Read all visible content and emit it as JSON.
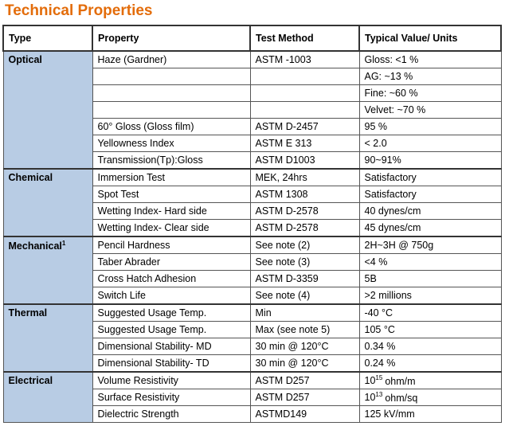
{
  "title": "Technical Properties",
  "table": {
    "header": [
      "Type",
      "Property",
      "Test Method",
      "Typical Value/ Units"
    ],
    "groups": [
      {
        "type": "Optical",
        "rows": [
          [
            "Haze (Gardner)",
            "ASTM -1003",
            "Gloss: <1 %"
          ],
          [
            null,
            null,
            "AG: ~13 %"
          ],
          [
            null,
            null,
            "Fine: ~60 %"
          ],
          [
            null,
            null,
            "Velvet: ~70 %"
          ],
          [
            "60° Gloss (Gloss film)",
            "ASTM D-2457",
            "95 %"
          ],
          [
            "Yellowness Index",
            "ASTM E 313",
            "< 2.0"
          ],
          [
            "Transmission(Tp):Gloss",
            "ASTM D1003",
            "90~91%"
          ]
        ]
      },
      {
        "type": "Chemical",
        "rows": [
          [
            "Immersion Test",
            "MEK, 24hrs",
            "Satisfactory"
          ],
          [
            "Spot Test",
            "ASTM 1308",
            "Satisfactory"
          ],
          [
            "Wetting Index- Hard side",
            "ASTM D-2578",
            "40 dynes/cm"
          ],
          [
            "Wetting Index- Clear side",
            "ASTM D-2578",
            "45 dynes/cm"
          ]
        ]
      },
      {
        "type": {
          "text": "Mechanical",
          "sup": "1"
        },
        "rows": [
          [
            "Pencil Hardness",
            "See note (2)",
            "2H~3H @ 750g"
          ],
          [
            "Taber Abrader",
            "See note (3)",
            "<4 %"
          ],
          [
            "Cross Hatch Adhesion",
            "ASTM D-3359",
            "5B"
          ],
          [
            "Switch Life",
            "See note (4)",
            ">2 millions"
          ]
        ]
      },
      {
        "type": "Thermal",
        "rows": [
          [
            "Suggested Usage Temp.",
            "Min",
            "-40 °C"
          ],
          [
            "Suggested Usage Temp.",
            "Max (see note 5)",
            "105 °C"
          ],
          [
            "Dimensional Stability- MD",
            "30 min @ 120°C",
            "0.34 %"
          ],
          [
            "Dimensional Stability- TD",
            "30 min @ 120°C",
            "0.24 %"
          ]
        ]
      },
      {
        "type": "Electrical",
        "rows": [
          [
            "Volume Resistivity",
            "ASTM D257",
            {
              "text": "10",
              "sup": "15",
              "rest": "ohm/m"
            }
          ],
          [
            "Surface Resistivity",
            "ASTM D257",
            {
              "text": "10",
              "sup": "13",
              "rest": "ohm/sq"
            }
          ],
          [
            "Dielectric Strength",
            "ASTMD149",
            "125 kV/mm"
          ]
        ]
      }
    ]
  }
}
